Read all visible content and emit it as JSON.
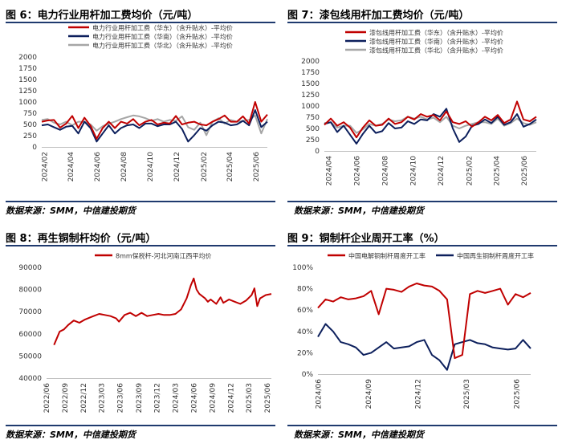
{
  "colors": {
    "red": "#c00000",
    "navy": "#0c1f5c",
    "gray": "#a6a6a6",
    "rule": "#1f3a6e"
  },
  "panels": [
    {
      "title": "图 6：电力行业用杆加工费均价（元/吨）",
      "source": "数据来源：SMM，中信建投期货"
    },
    {
      "title": "图 7：漆包线用杆加工费均价（元/吨）",
      "source": "数据来源：SMM，中信建投期货"
    },
    {
      "title": "图 8：再生铜制杆均价（元/吨）",
      "source": "数据来源：SMM，中信建投期货"
    },
    {
      "title": "图 9：铜制杆企业周开工率（%）",
      "source": "数据来源：SMM，中信建投期货"
    }
  ],
  "chart_data": [
    {
      "type": "line",
      "title": "图 6：电力行业用杆加工费均价（元/吨）",
      "ylim": [
        0,
        2000
      ],
      "yticks": [
        "0",
        "250",
        "500",
        "750",
        "1000",
        "1250",
        "1500",
        "1750",
        "2000"
      ],
      "xticks": [
        "2024/02",
        "2024/04",
        "2024/06",
        "2024/08",
        "2024/10",
        "2024/12",
        "2025/02",
        "2025/04",
        "2025/06"
      ],
      "x": [
        "2024-01-26",
        "2024-02-09",
        "2024-02-23",
        "2024-03-08",
        "2024-03-22",
        "2024-04-05",
        "2024-04-19",
        "2024-05-03",
        "2024-05-17",
        "2024-05-31",
        "2024-06-14",
        "2024-06-28",
        "2024-07-12",
        "2024-07-26",
        "2024-08-09",
        "2024-08-23",
        "2024-09-06",
        "2024-09-20",
        "2024-10-04",
        "2024-10-18",
        "2024-11-01",
        "2024-11-15",
        "2024-11-29",
        "2024-12-13",
        "2024-12-27",
        "2025-01-10",
        "2025-01-24",
        "2025-02-07",
        "2025-02-21",
        "2025-03-07",
        "2025-03-21",
        "2025-04-04",
        "2025-04-18",
        "2025-05-02",
        "2025-05-16",
        "2025-05-30",
        "2025-06-13",
        "2025-06-27"
      ],
      "series": [
        {
          "name": "电力行业用杆加工费（华东）（含升贴水）-平均价",
          "color": "#c00000",
          "values": [
            560,
            590,
            600,
            430,
            520,
            690,
            420,
            650,
            470,
            180,
            420,
            560,
            420,
            560,
            520,
            620,
            480,
            560,
            600,
            500,
            540,
            520,
            690,
            500,
            540,
            560,
            500,
            480,
            560,
            620,
            700,
            560,
            560,
            680,
            520,
            1000,
            560,
            720
          ]
        },
        {
          "name": "电力行业用杆加工费（华南）（含升贴水）-平均价",
          "color": "#0c1f5c",
          "values": [
            480,
            500,
            440,
            380,
            450,
            470,
            300,
            560,
            420,
            120,
            300,
            480,
            300,
            420,
            480,
            500,
            420,
            520,
            520,
            460,
            500,
            500,
            560,
            400,
            120,
            260,
            420,
            360,
            480,
            560,
            540,
            480,
            500,
            580,
            480,
            820,
            440,
            560
          ]
        },
        {
          "name": "电力行业用杆加工费（华北）（含升贴水）-平均价",
          "color": "#a6a6a6",
          "values": [
            600,
            620,
            540,
            500,
            560,
            480,
            560,
            560,
            500,
            360,
            460,
            520,
            560,
            620,
            660,
            700,
            680,
            640,
            580,
            620,
            560,
            600,
            580,
            680,
            440,
            380,
            540,
            260,
            560,
            640,
            520,
            600,
            560,
            580,
            600,
            700,
            300,
            620
          ]
        }
      ]
    },
    {
      "type": "line",
      "title": "图 7：漆包线用杆加工费均价（元/吨）",
      "ylim": [
        0,
        2000
      ],
      "yticks": [
        "0",
        "250",
        "500",
        "750",
        "1000",
        "1250",
        "1500",
        "1750",
        "2000"
      ],
      "xticks": [
        "2024/04",
        "2024/06",
        "2024/08",
        "2024/10",
        "2024/12",
        "2025/02",
        "2025/04",
        "2025/06"
      ],
      "x": [
        "2024-03-22",
        "2024-04-05",
        "2024-04-19",
        "2024-05-03",
        "2024-05-17",
        "2024-05-31",
        "2024-06-14",
        "2024-06-28",
        "2024-07-12",
        "2024-07-26",
        "2024-08-09",
        "2024-08-23",
        "2024-09-06",
        "2024-09-20",
        "2024-10-04",
        "2024-10-18",
        "2024-11-01",
        "2024-11-15",
        "2024-11-29",
        "2024-12-13",
        "2024-12-27",
        "2025-01-10",
        "2025-01-24",
        "2025-02-07",
        "2025-02-21",
        "2025-03-07",
        "2025-03-21",
        "2025-04-04",
        "2025-04-18",
        "2025-05-02",
        "2025-05-16",
        "2025-05-30",
        "2025-06-13",
        "2025-06-27"
      ],
      "series": [
        {
          "name": "漆包线用杆加工费（华东）（含升贴水）-平均价",
          "color": "#c00000",
          "values": [
            580,
            720,
            560,
            640,
            520,
            300,
            520,
            680,
            560,
            580,
            720,
            600,
            640,
            760,
            700,
            820,
            760,
            800,
            680,
            880,
            640,
            600,
            660,
            540,
            640,
            760,
            680,
            800,
            620,
            700,
            1100,
            700,
            660,
            760
          ]
        },
        {
          "name": "漆包线用杆加工费（华南）（含升贴水）-平均价",
          "color": "#0c1f5c",
          "values": [
            600,
            640,
            420,
            560,
            360,
            160,
            380,
            560,
            400,
            440,
            620,
            500,
            520,
            660,
            600,
            700,
            680,
            820,
            760,
            940,
            500,
            200,
            320,
            560,
            600,
            700,
            620,
            760,
            580,
            640,
            820,
            540,
            600,
            700
          ]
        },
        {
          "name": "漆包线用杆加工费（华北）（含升贴水）-平均价",
          "color": "#a6a6a6",
          "values": [
            620,
            640,
            520,
            560,
            560,
            400,
            480,
            600,
            560,
            600,
            700,
            660,
            680,
            760,
            720,
            760,
            700,
            740,
            640,
            760,
            560,
            500,
            560,
            600,
            640,
            640,
            600,
            720,
            560,
            620,
            720,
            620,
            580,
            640
          ]
        }
      ]
    },
    {
      "type": "line",
      "title": "图 8：再生铜制杆均价（元/吨）",
      "ylim": [
        40000,
        90000
      ],
      "yticks": [
        "40000",
        "50000",
        "60000",
        "70000",
        "80000",
        "90000"
      ],
      "xticks": [
        "2022/06",
        "2022/09",
        "2022/12",
        "2023/03",
        "2023/06",
        "2023/09",
        "2023/12",
        "2024/03",
        "2024/06",
        "2024/09",
        "2024/12",
        "2025/03",
        "2025/06"
      ],
      "x": [
        "2022-07-08",
        "2022-07-22",
        "2022-08-05",
        "2022-08-26",
        "2022-09-16",
        "2022-10-14",
        "2022-11-11",
        "2022-12-09",
        "2023-01-06",
        "2023-01-20",
        "2023-02-17",
        "2023-03-17",
        "2023-04-14",
        "2023-05-12",
        "2023-05-26",
        "2023-06-23",
        "2023-07-21",
        "2023-08-18",
        "2023-09-15",
        "2023-10-13",
        "2023-11-10",
        "2023-12-08",
        "2024-01-05",
        "2024-02-02",
        "2024-03-01",
        "2024-03-29",
        "2024-04-26",
        "2024-05-17",
        "2024-05-31",
        "2024-06-14",
        "2024-06-28",
        "2024-07-26",
        "2024-08-09",
        "2024-08-23",
        "2024-09-20",
        "2024-10-11",
        "2024-10-25",
        "2024-11-22",
        "2024-12-20",
        "2025-01-17",
        "2025-02-14",
        "2025-03-14",
        "2025-03-28",
        "2025-04-11",
        "2025-04-25",
        "2025-05-23",
        "2025-06-20"
      ],
      "series": [
        {
          "name": "8mm保税杆-河北河南江西平均价",
          "color": "#c00000",
          "values": [
            55000,
            58000,
            61000,
            62000,
            64000,
            66000,
            65000,
            66500,
            67500,
            68000,
            69000,
            68500,
            68000,
            67000,
            65500,
            68500,
            69500,
            68000,
            69500,
            68000,
            68500,
            69000,
            68500,
            68500,
            69000,
            71000,
            76000,
            82000,
            85000,
            80000,
            78000,
            76000,
            74500,
            75500,
            73500,
            76500,
            74000,
            75500,
            74500,
            73500,
            75000,
            77500,
            80500,
            72500,
            76000,
            77500,
            78000
          ]
        }
      ]
    },
    {
      "type": "line",
      "title": "图 9：铜制杆企业周开工率（%）",
      "ylim": [
        0,
        100
      ],
      "yticks": [
        "0%",
        "20%",
        "40%",
        "60%",
        "80%",
        "100%"
      ],
      "xticks": [
        "2024/06",
        "2024/09",
        "2024/12",
        "2025/03",
        "2025/06"
      ],
      "x": [
        "2024-05-31",
        "2024-06-14",
        "2024-06-28",
        "2024-07-12",
        "2024-07-26",
        "2024-08-09",
        "2024-08-23",
        "2024-09-06",
        "2024-09-20",
        "2024-10-04",
        "2024-10-18",
        "2024-11-01",
        "2024-11-15",
        "2024-11-29",
        "2024-12-13",
        "2024-12-27",
        "2025-01-10",
        "2025-01-24",
        "2025-02-07",
        "2025-02-21",
        "2025-03-07",
        "2025-03-21",
        "2025-04-04",
        "2025-04-18",
        "2025-05-02",
        "2025-05-16",
        "2025-05-30",
        "2025-06-13",
        "2025-06-27"
      ],
      "series": [
        {
          "name": "中国电解铜制杆周度开工率",
          "color": "#c00000",
          "values": [
            62,
            70,
            68,
            72,
            70,
            71,
            73,
            78,
            56,
            80,
            79,
            77,
            82,
            85,
            83,
            82,
            78,
            70,
            15,
            18,
            75,
            78,
            76,
            78,
            80,
            65,
            75,
            72,
            76
          ]
        },
        {
          "name": "中国再生铜制杆周度开工率",
          "color": "#0c1f5c",
          "values": [
            35,
            47,
            40,
            30,
            28,
            25,
            18,
            20,
            25,
            30,
            24,
            25,
            26,
            30,
            32,
            18,
            13,
            4,
            28,
            30,
            32,
            29,
            28,
            25,
            24,
            23,
            24,
            32,
            24
          ]
        }
      ]
    }
  ]
}
